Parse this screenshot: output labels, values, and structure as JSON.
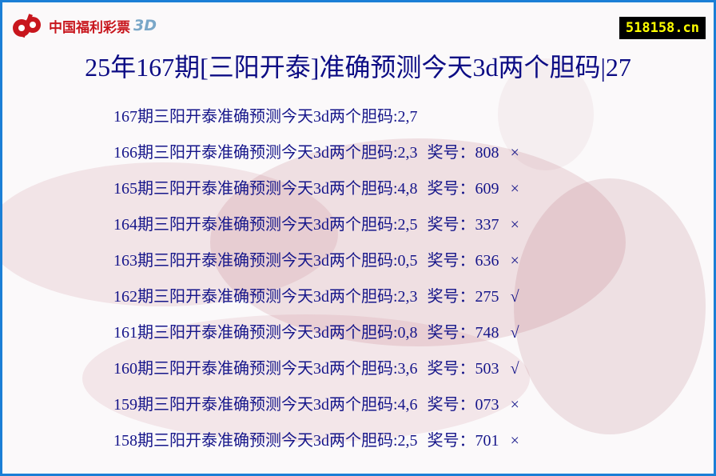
{
  "logo": {
    "text": "中国福利彩票",
    "suffix": "3D"
  },
  "site": "518158.cn",
  "title": "25年167期[三阳开泰]准确预测今天3d两个胆码|27",
  "colors": {
    "border": "#1b7fd6",
    "text": "#16168a",
    "logo": "#c8161d"
  },
  "rows": [
    {
      "text": "167期三阳开泰准确预测今天3d两个胆码:2,7",
      "prize": "",
      "mark": ""
    },
    {
      "text": "166期三阳开泰准确预测今天3d两个胆码:2,3",
      "prize": "奖号：808",
      "mark": "×"
    },
    {
      "text": "165期三阳开泰准确预测今天3d两个胆码:4,8",
      "prize": "奖号：609",
      "mark": "×"
    },
    {
      "text": "164期三阳开泰准确预测今天3d两个胆码:2,5",
      "prize": "奖号：337",
      "mark": "×"
    },
    {
      "text": "163期三阳开泰准确预测今天3d两个胆码:0,5",
      "prize": "奖号：636",
      "mark": "×"
    },
    {
      "text": "162期三阳开泰准确预测今天3d两个胆码:2,3",
      "prize": "奖号：275",
      "mark": "√"
    },
    {
      "text": "161期三阳开泰准确预测今天3d两个胆码:0,8",
      "prize": "奖号：748",
      "mark": "√"
    },
    {
      "text": "160期三阳开泰准确预测今天3d两个胆码:3,6",
      "prize": "奖号：503",
      "mark": "√"
    },
    {
      "text": "159期三阳开泰准确预测今天3d两个胆码:4,6",
      "prize": "奖号：073",
      "mark": "×"
    },
    {
      "text": "158期三阳开泰准确预测今天3d两个胆码:2,5",
      "prize": "奖号：701",
      "mark": "×"
    }
  ]
}
